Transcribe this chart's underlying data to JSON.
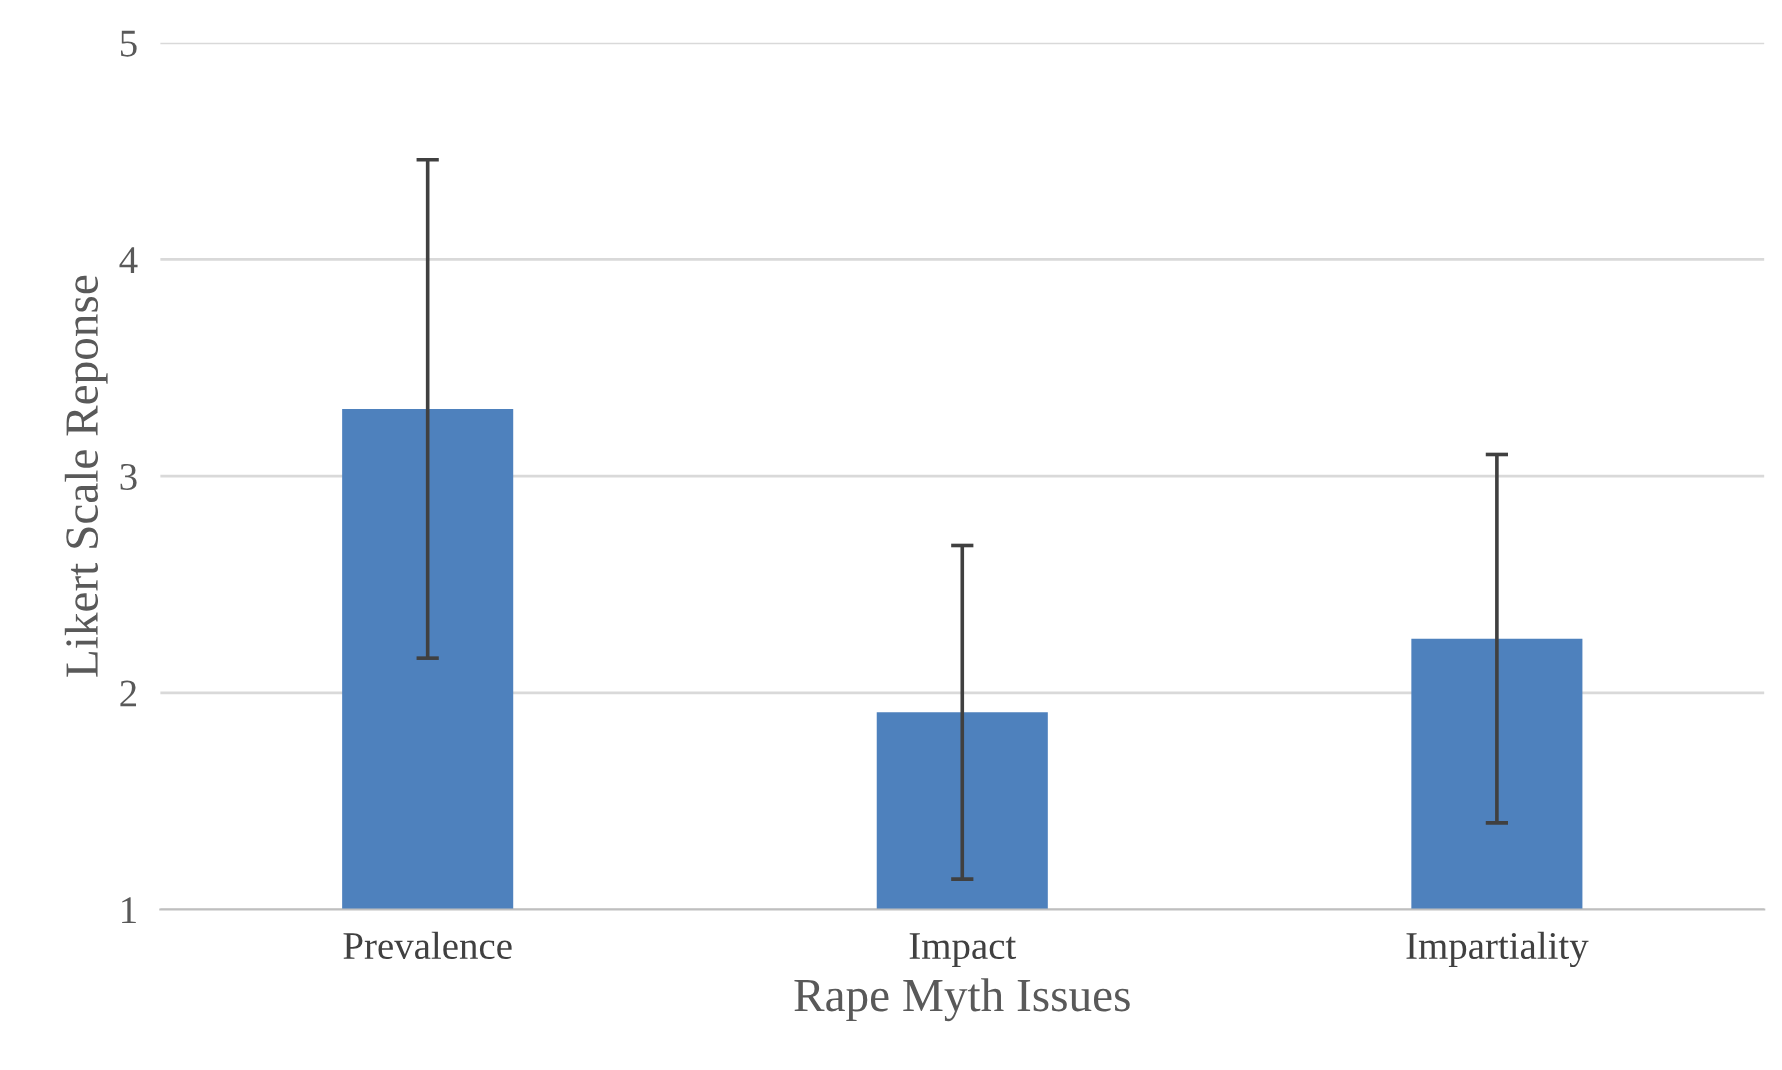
{
  "chart_data": {
    "type": "bar",
    "xlabel": "Rape Myth Issues",
    "ylabel": "Likert Scale Reponse",
    "categories": [
      "Prevalence",
      "Impact",
      "Impartiality"
    ],
    "values": [
      3.31,
      1.91,
      2.25
    ],
    "errors": [
      1.15,
      0.77,
      0.85
    ],
    "color": "#4e81bd",
    "ylim": [
      1,
      5
    ],
    "yticks": [
      1,
      2,
      3,
      4,
      5
    ],
    "grid": "y"
  }
}
